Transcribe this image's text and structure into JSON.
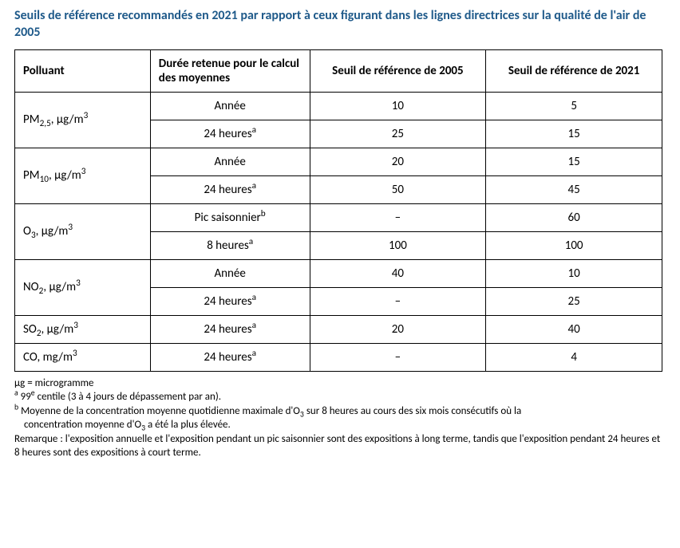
{
  "title_color": "#1f5a8a",
  "title": "Seuils de référence recommandés en 2021 par rapport à ceux figurant dans les lignes directrices sur la qualité de l'air de 2005",
  "columns": {
    "pollutant": "Polluant",
    "duration": "Durée retenue pour le calcul des moyennes",
    "ref2005": "Seuil de référence de 2005",
    "ref2021": "Seuil de référence de 2021"
  },
  "col_widths": {
    "pollutant": 170,
    "duration": 200,
    "ref2005": 221,
    "ref2021": 221
  },
  "rows": [
    {
      "pollutant_html": "PM<sub>2,5</sub>, µg/m<sup>3</sup>",
      "span": 2,
      "sub": [
        {
          "duration_html": "Année",
          "v2005": "10",
          "v2021": "5"
        },
        {
          "duration_html": "24 heures<sup>a</sup>",
          "v2005": "25",
          "v2021": "15"
        }
      ]
    },
    {
      "pollutant_html": "PM<sub>10</sub>, µg/m<sup>3</sup>",
      "span": 2,
      "sub": [
        {
          "duration_html": "Année",
          "v2005": "20",
          "v2021": "15"
        },
        {
          "duration_html": "24 heures<sup>a</sup>",
          "v2005": "50",
          "v2021": "45"
        }
      ]
    },
    {
      "pollutant_html": "O<sub>3</sub>, µg/m<sup>3</sup>",
      "span": 2,
      "sub": [
        {
          "duration_html": "Pic saisonnier<sup>b</sup>",
          "v2005": "–",
          "v2021": "60"
        },
        {
          "duration_html": "8 heures<sup>a</sup>",
          "v2005": "100",
          "v2021": "100"
        }
      ]
    },
    {
      "pollutant_html": "NO<sub>2</sub>, µg/m<sup>3</sup>",
      "span": 2,
      "sub": [
        {
          "duration_html": "Année",
          "v2005": "40",
          "v2021": "10"
        },
        {
          "duration_html": "24 heures<sup>a</sup>",
          "v2005": "–",
          "v2021": "25"
        }
      ]
    },
    {
      "pollutant_html": "SO<sub>2</sub>, µg/m<sup>3</sup>",
      "span": 1,
      "sub": [
        {
          "duration_html": "24 heures<sup>a</sup>",
          "v2005": "20",
          "v2021": "40"
        }
      ]
    },
    {
      "pollutant_html": "CO, mg/m<sup>3</sup>",
      "span": 1,
      "sub": [
        {
          "duration_html": "24 heures<sup>a</sup>",
          "v2005": "–",
          "v2021": "4"
        }
      ]
    }
  ],
  "footnotes": {
    "l1": "µg = microgramme",
    "l2_html": "<sup>a</sup> 99<sup>e</sup> centile (3 à 4 jours de dépassement par an).",
    "l3_html": "<sup>b</sup> Moyenne de la concentration moyenne quotidienne maximale d'O<sub>3</sub> sur 8 heures au cours des six mois consécutifs où la",
    "l3b_html": "concentration moyenne d'O<sub>3</sub> a été la plus élevée.",
    "l4": "Remarque : l'exposition annuelle et l'exposition pendant un pic saisonnier sont des expositions à long terme, tandis que l'exposition pendant 24 heures et 8 heures sont des expositions à court terme."
  }
}
